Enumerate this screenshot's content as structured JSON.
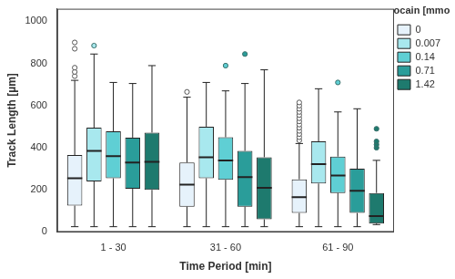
{
  "chart_data": {
    "type": "boxplot",
    "x_label": "Time Period [min]",
    "y_label": "Track Length [µm]",
    "legend_title": "Lidocain [mmol/L]",
    "legend": "right",
    "grid": false,
    "categories": [
      "1 - 30",
      "31 - 60",
      "61 - 90"
    ],
    "ylim": [
      0,
      1060
    ],
    "yticks": [
      0,
      200,
      400,
      600,
      800,
      1000
    ],
    "series": [
      {
        "name": "0",
        "color": "#e6f2fb",
        "marker": "circle",
        "min": [
          25,
          25,
          25
        ],
        "q1": [
          125,
          120,
          90
        ],
        "median": [
          255,
          225,
          165
        ],
        "q3": [
          365,
          330,
          250
        ],
        "max": [
          720,
          640,
          420
        ],
        "outliers": [
          [
            740,
            760,
            780,
            870,
            900
          ],
          [
            665
          ],
          [
            435,
            450,
            465,
            480,
            495,
            510,
            525,
            540,
            555,
            570,
            585,
            600,
            615
          ]
        ]
      },
      {
        "name": "0.007",
        "color": "#a8e8ee",
        "marker": "circle",
        "min": [
          25,
          25,
          25
        ],
        "q1": [
          240,
          255,
          230
        ],
        "median": [
          385,
          355,
          322
        ],
        "q3": [
          495,
          500,
          430
        ],
        "max": [
          845,
          710,
          680
        ],
        "outliers": [
          [
            885
          ],
          [],
          []
        ]
      },
      {
        "name": "0.14",
        "color": "#5fcfd4",
        "marker": "circle",
        "min": [
          25,
          25,
          25
        ],
        "q1": [
          255,
          248,
          185
        ],
        "median": [
          360,
          340,
          268
        ],
        "q3": [
          478,
          450,
          358
        ],
        "max": [
          710,
          670,
          570
        ],
        "outliers": [
          [],
          [
            790
          ],
          [
            710
          ]
        ]
      },
      {
        "name": "0.71",
        "color": "#2a9d9a",
        "marker": "circle",
        "min": [
          25,
          25,
          25
        ],
        "q1": [
          205,
          120,
          90
        ],
        "median": [
          330,
          260,
          195
        ],
        "q3": [
          448,
          385,
          300
        ],
        "max": [
          705,
          705,
          585
        ],
        "outliers": [
          [],
          [
            845
          ],
          []
        ]
      },
      {
        "name": "1.42",
        "color": "#1e7a6e",
        "marker": "circle",
        "min": [
          25,
          25,
          35
        ],
        "q1": [
          200,
          60,
          40
        ],
        "median": [
          333,
          210,
          75
        ],
        "q3": [
          472,
          355,
          185
        ],
        "max": [
          790,
          770,
          340
        ],
        "outliers": [
          [],
          [],
          [
            400,
            415,
            430,
            490
          ]
        ]
      }
    ]
  }
}
